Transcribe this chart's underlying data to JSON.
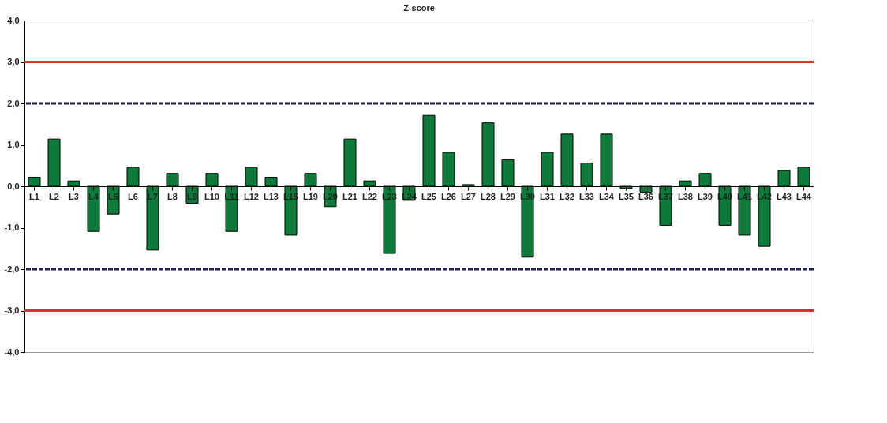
{
  "chart_data": {
    "type": "bar",
    "title": "Z-score",
    "categories": [
      "L1",
      "L2",
      "L3",
      "L4",
      "L5",
      "L6",
      "L7",
      "L8",
      "L9",
      "L10",
      "L11",
      "L12",
      "L13",
      "L15",
      "L19",
      "L20",
      "L21",
      "L22",
      "L23",
      "L24",
      "L25",
      "L26",
      "L27",
      "L28",
      "L29",
      "L30",
      "L31",
      "L32",
      "L33",
      "L34",
      "L35",
      "L36",
      "L37",
      "L38",
      "L39",
      "L40",
      "L41",
      "L42",
      "L43",
      "L44"
    ],
    "values": [
      0.22,
      1.14,
      0.13,
      -1.09,
      -0.67,
      0.46,
      -1.54,
      0.31,
      -0.41,
      0.31,
      -1.09,
      0.46,
      0.22,
      -1.18,
      0.31,
      -0.49,
      1.14,
      0.13,
      -1.62,
      -0.34,
      1.71,
      0.82,
      0.04,
      1.53,
      0.64,
      -1.71,
      0.82,
      1.26,
      0.56,
      1.26,
      -0.05,
      -0.14,
      -0.94,
      0.13,
      0.31,
      -0.94,
      -1.18,
      -1.45,
      0.38,
      0.46
    ],
    "color": "#0e7a3a",
    "ylim": [
      -4,
      4
    ],
    "yticks": [
      {
        "value": -4,
        "label": "-4,0"
      },
      {
        "value": -3,
        "label": "-3,0"
      },
      {
        "value": -2,
        "label": "-2,0"
      },
      {
        "value": -1,
        "label": "-1,0"
      },
      {
        "value": 0,
        "label": "0,0"
      },
      {
        "value": 1,
        "label": "1,0"
      },
      {
        "value": 2,
        "label": "2,0"
      },
      {
        "value": 3,
        "label": "3,0"
      },
      {
        "value": 4,
        "label": "4,0"
      }
    ],
    "ref_lines": [
      {
        "axis": "y",
        "value": 3,
        "color": "#d9322e",
        "line_style": "solid"
      },
      {
        "axis": "y",
        "value": 2,
        "color": "#1f2150",
        "line_style": "dashed"
      },
      {
        "axis": "y",
        "value": -2,
        "color": "#1f2150",
        "line_style": "dashed"
      },
      {
        "axis": "y",
        "value": -3,
        "color": "#d9322e",
        "line_style": "solid"
      }
    ],
    "grid": false
  }
}
